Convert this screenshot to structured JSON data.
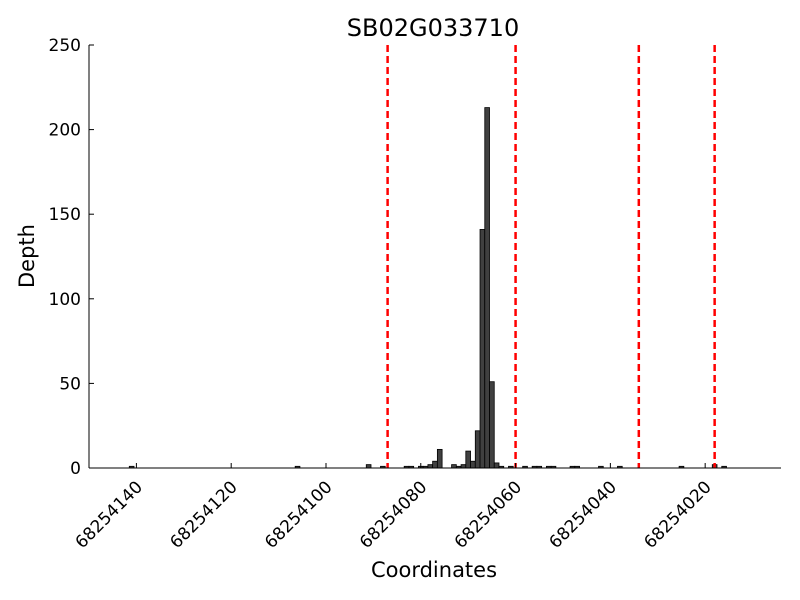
{
  "chart_data": {
    "type": "bar",
    "title": "SB02G033710",
    "xlabel": "Coordinates",
    "ylabel": "Depth",
    "x_axis_reversed": true,
    "xlim": [
      68254150,
      68254004
    ],
    "ylim": [
      0,
      250
    ],
    "yticks": [
      0,
      50,
      100,
      150,
      200,
      250
    ],
    "xticks": [
      68254140,
      68254120,
      68254100,
      68254080,
      68254060,
      68254040,
      68254020
    ],
    "tick_labels_x": [
      "68254140",
      "68254120",
      "68254100",
      "68254080",
      "68254060",
      "68254040",
      "68254020"
    ],
    "tick_labels_y": [
      "0",
      "50",
      "100",
      "150",
      "200",
      "250"
    ],
    "grid": false,
    "bar_color": "#404040",
    "bar_edge_color": "#000000",
    "marker_line_color": "#ff0000",
    "marker_lines_x": [
      68254087,
      68254060,
      68254034,
      68254018
    ],
    "series": [
      {
        "x": [
          68254141,
          68254106,
          68254091,
          68254088,
          68254083,
          68254082,
          68254080,
          68254079,
          68254078,
          68254077,
          68254076,
          68254073,
          68254072,
          68254071,
          68254070,
          68254069,
          68254068,
          68254067,
          68254066,
          68254065,
          68254064,
          68254063,
          68254061,
          68254058,
          68254056,
          68254055,
          68254053,
          68254052,
          68254048,
          68254047,
          68254042,
          68254038,
          68254025,
          68254018,
          68254016
        ],
        "values": [
          1,
          1,
          2,
          1,
          1,
          1,
          1,
          1,
          2,
          4,
          11,
          2,
          1,
          2,
          10,
          4,
          22,
          141,
          213,
          51,
          3,
          1,
          1,
          1,
          1,
          1,
          1,
          1,
          1,
          1,
          1,
          1,
          1,
          2,
          1
        ]
      }
    ]
  }
}
